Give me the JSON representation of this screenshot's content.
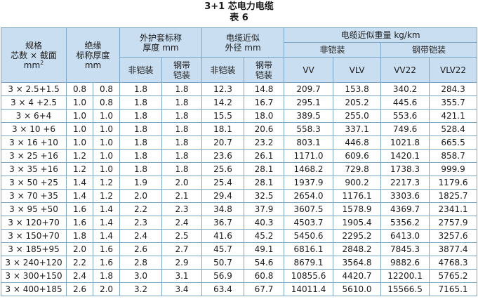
{
  "title": "3+1 芯电力电缆",
  "subtitle": "表 6",
  "header": {
    "spec_line1": "规格",
    "spec_line2": "芯数 × 截面",
    "spec_line3": "mm",
    "spec_sup": "2",
    "insulation_line1": "绝缘",
    "insulation_line2": "标称厚度",
    "insulation_line3": "mm",
    "sheath_line1": "外护套标称",
    "sheath_line2": "厚度 mm",
    "diameter_line1": "电缆近似",
    "diameter_line2": "外径 mm",
    "weight": "电缆近似重量 kg/km",
    "unarmored": "非铠装",
    "armored": "钢带铠装",
    "sheath_unarmored": "非铠装",
    "sheath_armored_1": "钢带",
    "sheath_armored_2": "铠装",
    "dia_unarmored": "非铠装",
    "dia_armored_1": "钢带",
    "dia_armored_2": "铠装",
    "vv": "VV",
    "vlv": "VLV",
    "vv22": "VV22",
    "vlv22": "VLV22"
  },
  "rows": [
    [
      "3 × 2.5+1.5",
      "0.8",
      "0.8",
      "1.8",
      "1.8",
      "12.3",
      "14.8",
      "209.7",
      "153.8",
      "340.2",
      "284.3"
    ],
    [
      "3 × 4 +2.5",
      "1.0",
      "0.8",
      "1.8",
      "1.8",
      "14.2",
      "16.7",
      "295.1",
      "205.2",
      "445.6",
      "355.7"
    ],
    [
      "3 × 6+4",
      "1.0",
      "1.0",
      "1.8",
      "1.8",
      "15.5",
      "18.0",
      "389.5",
      "255.0",
      "553.6",
      "421.1"
    ],
    [
      "3 × 10 +6",
      "1.0",
      "1.0",
      "1.8",
      "1.8",
      "18.1",
      "20.6",
      "558.3",
      "337.1",
      "749.6",
      "528.4"
    ],
    [
      "3 × 16 +10",
      "1.0",
      "1.0",
      "1.8",
      "1.8",
      "20.7",
      "23.2",
      "803.1",
      "446.8",
      "1021.8",
      "665.5"
    ],
    [
      "3 × 25 +16",
      "1.2",
      "1.0",
      "1.8",
      "1.8",
      "23.6",
      "26.1",
      "1171.0",
      "609.6",
      "1420.1",
      "858.7"
    ],
    [
      "3 × 35 +16",
      "1.2",
      "1.0",
      "1.8",
      "1.8",
      "25.6",
      "28.1",
      "1468.2",
      "729.8",
      "1738.3",
      "999.9"
    ],
    [
      "3 × 50 +25",
      "1.4",
      "1.2",
      "1.9",
      "2.0",
      "25.4",
      "28.1",
      "1937.9",
      "900.2",
      "2217.3",
      "1179.6"
    ],
    [
      "3 × 70 +35",
      "1.4",
      "1.2",
      "2.0",
      "2.1",
      "29.4",
      "32.5",
      "2654.0",
      "1176.1",
      "3303.6",
      "1825.7"
    ],
    [
      "3 × 95 +50",
      "1.6",
      "1.4",
      "2.2",
      "2.3",
      "34.8",
      "37.9",
      "3607.5",
      "1578.9",
      "4369.7",
      "2341.1"
    ],
    [
      "3 × 120+70",
      "1.6",
      "1.4",
      "2.3",
      "2.4",
      "36.7",
      "40.3",
      "4503.7",
      "1905.4",
      "5356.2",
      "2757.9"
    ],
    [
      "3 × 150+70",
      "1.8",
      "1.4",
      "2.4",
      "2.5",
      "41.6",
      "45.2",
      "5450.6",
      "2295.2",
      "6413.0",
      "3257.6"
    ],
    [
      "3 × 185+95",
      "2.0",
      "1.6",
      "2.6",
      "2.7",
      "45.7",
      "49.1",
      "6816.1",
      "2848.2",
      "7845.3",
      "3877.4"
    ],
    [
      "3 × 240+120",
      "2.2",
      "1.6",
      "2.8",
      "2.9",
      "50.7",
      "54.6",
      "8679.1",
      "3564.8",
      "9882.6",
      "4768.3"
    ],
    [
      "3 × 300+150",
      "2.4",
      "1.8",
      "3.0",
      "3.1",
      "56.9",
      "60.8",
      "10855.6",
      "4420.7",
      "12200.1",
      "5765.2"
    ],
    [
      "3 × 400+185",
      "2.6",
      "2.0",
      "3.2",
      "3.4",
      "63.4",
      "67.7",
      "14011.4",
      "5610.0",
      "15566.5",
      "7165.1"
    ]
  ]
}
